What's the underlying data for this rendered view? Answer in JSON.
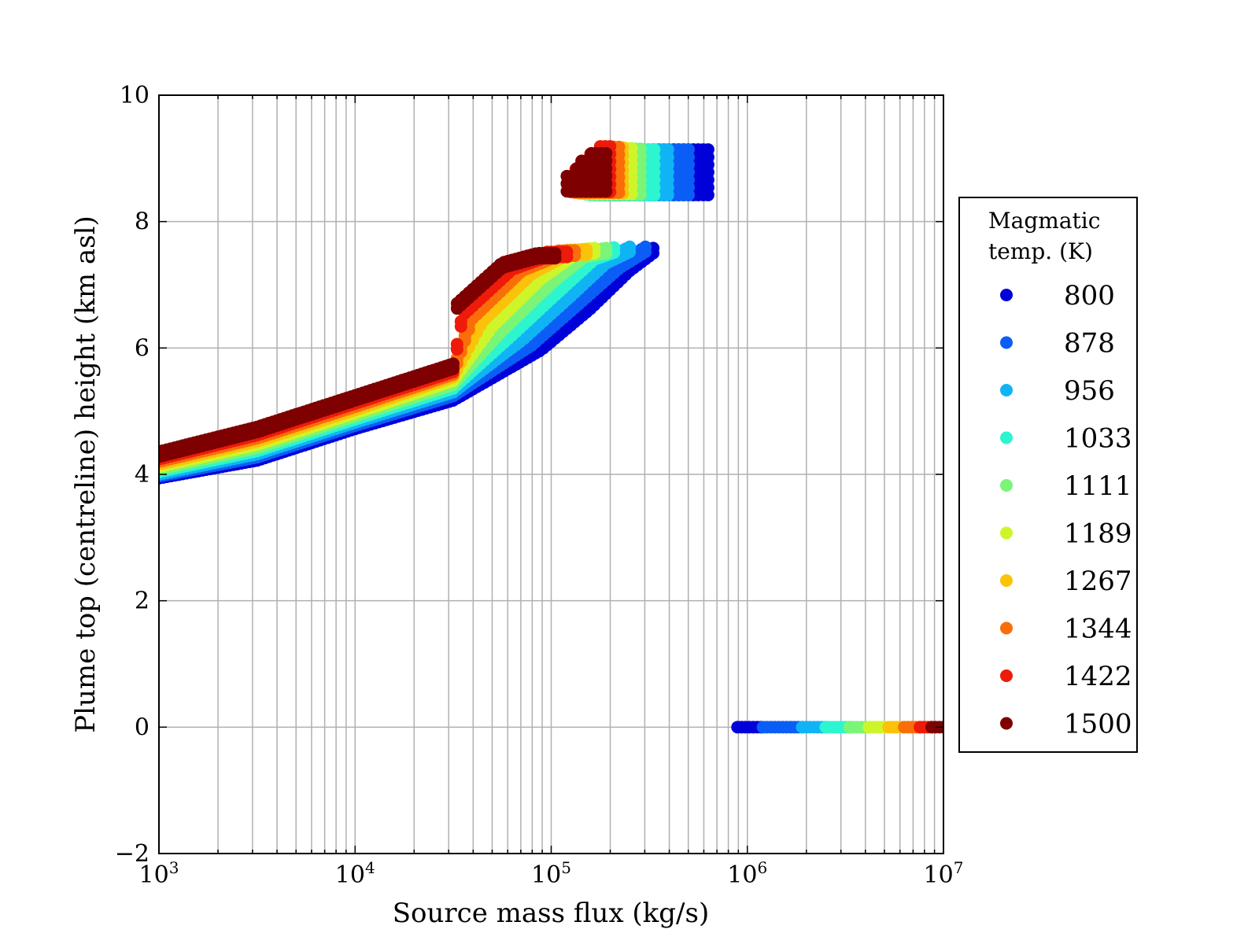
{
  "chart_data": {
    "type": "scatter",
    "title": "",
    "xlabel": "Source mass flux (kg/s)",
    "ylabel": "Plume top (centreline) height (km asl)",
    "x_scale": "log",
    "xlim": [
      1000,
      10000000
    ],
    "ylim": [
      -2,
      10
    ],
    "grid": true,
    "x_ticks": [
      {
        "base": "10",
        "exp": "3"
      },
      {
        "base": "10",
        "exp": "4"
      },
      {
        "base": "10",
        "exp": "5"
      },
      {
        "base": "10",
        "exp": "6"
      },
      {
        "base": "10",
        "exp": "7"
      }
    ],
    "y_ticks": [
      "−2",
      "0",
      "2",
      "4",
      "6",
      "8",
      "10"
    ],
    "y_tick_values": [
      -2,
      0,
      2,
      4,
      6,
      8,
      10
    ],
    "legend": {
      "title_line1": "Magmatic",
      "title_line2": "temp. (K)",
      "placement": "right, outside plot"
    },
    "series": [
      {
        "name": "800",
        "color": "#0000d8",
        "lower_band": {
          "log10_x": [
            3.0,
            3.5,
            4.0,
            4.5,
            4.95,
            5.2,
            5.4,
            5.52
          ],
          "y": [
            4.02,
            4.3,
            4.8,
            5.25,
            6.05,
            6.7,
            7.3,
            7.58
          ],
          "note_thickness": 0.14
        },
        "upper_cluster": {
          "log10_x_start": 5.3,
          "log10_x_end": 5.82,
          "y_bottom": 8.42,
          "y_top": 9.15
        },
        "zero_line": {
          "log10_x_start": 5.95,
          "log10_x_end": 6.08,
          "y": 0
        }
      },
      {
        "name": "878",
        "color": "#0b5ef5",
        "lower_band": {
          "log10_x": [
            3.0,
            3.5,
            4.0,
            4.5,
            4.9,
            5.15,
            5.35,
            5.48
          ],
          "y": [
            4.05,
            4.35,
            4.85,
            5.32,
            6.12,
            6.8,
            7.35,
            7.6
          ]
        },
        "upper_cluster": {
          "log10_x_start": 5.25,
          "log10_x_end": 5.72,
          "y_bottom": 8.42,
          "y_top": 9.18
        },
        "zero_line": {
          "log10_x_start": 6.08,
          "log10_x_end": 6.28,
          "y": 0
        }
      },
      {
        "name": "956",
        "color": "#10b4f5",
        "lower_band": {
          "log10_x": [
            3.0,
            3.5,
            4.0,
            4.5,
            4.85,
            5.1,
            5.28,
            5.4
          ],
          "y": [
            4.08,
            4.4,
            4.9,
            5.38,
            6.2,
            6.9,
            7.42,
            7.6
          ]
        },
        "upper_cluster": {
          "log10_x_start": 5.22,
          "log10_x_end": 5.62,
          "y_bottom": 8.42,
          "y_top": 9.2
        },
        "zero_line": {
          "log10_x_start": 6.28,
          "log10_x_end": 6.4,
          "y": 0
        }
      },
      {
        "name": "1033",
        "color": "#2cf5d0",
        "lower_band": {
          "log10_x": [
            3.0,
            3.5,
            4.0,
            4.5,
            4.8,
            5.05,
            5.22,
            5.33
          ],
          "y": [
            4.12,
            4.45,
            4.95,
            5.44,
            6.28,
            7.0,
            7.48,
            7.6
          ]
        },
        "upper_cluster": {
          "log10_x_start": 5.2,
          "log10_x_end": 5.55,
          "y_bottom": 8.42,
          "y_top": 9.2
        },
        "zero_line": {
          "log10_x_start": 6.4,
          "log10_x_end": 6.52,
          "y": 0
        }
      },
      {
        "name": "1111",
        "color": "#7af577",
        "lower_band": {
          "log10_x": [
            3.0,
            3.5,
            4.0,
            4.5,
            4.75,
            5.0,
            5.17,
            5.28
          ],
          "y": [
            4.16,
            4.5,
            5.0,
            5.5,
            6.35,
            7.1,
            7.52,
            7.58
          ]
        },
        "upper_cluster": {
          "log10_x_start": 5.18,
          "log10_x_end": 5.48,
          "y_bottom": 8.43,
          "y_top": 9.2
        },
        "zero_line": {
          "log10_x_start": 6.52,
          "log10_x_end": 6.62,
          "y": 0
        }
      },
      {
        "name": "1189",
        "color": "#cef52a",
        "lower_band": {
          "log10_x": [
            3.0,
            3.5,
            4.0,
            4.5,
            4.7,
            4.95,
            5.12,
            5.22
          ],
          "y": [
            4.2,
            4.55,
            5.05,
            5.56,
            6.42,
            7.18,
            7.55,
            7.58
          ]
        },
        "upper_cluster": {
          "log10_x_start": 5.16,
          "log10_x_end": 5.43,
          "y_bottom": 8.44,
          "y_top": 9.2
        },
        "zero_line": {
          "log10_x_start": 6.62,
          "log10_x_end": 6.72,
          "y": 0
        }
      },
      {
        "name": "1267",
        "color": "#fbc20a",
        "lower_band": {
          "log10_x": [
            3.0,
            3.5,
            4.0,
            4.5,
            4.65,
            4.9,
            5.08,
            5.18
          ],
          "y": [
            4.24,
            4.6,
            5.1,
            5.62,
            6.5,
            7.25,
            7.55,
            7.56
          ]
        },
        "upper_cluster": {
          "log10_x_start": 5.14,
          "log10_x_end": 5.38,
          "y_bottom": 8.45,
          "y_top": 9.2
        },
        "zero_line": {
          "log10_x_start": 6.72,
          "log10_x_end": 6.8,
          "y": 0
        }
      },
      {
        "name": "1344",
        "color": "#fa6e0a",
        "lower_band": {
          "log10_x": [
            3.0,
            3.5,
            4.0,
            4.5,
            4.6,
            4.85,
            5.04,
            5.12
          ],
          "y": [
            4.28,
            4.65,
            5.15,
            5.66,
            6.55,
            7.3,
            7.54,
            7.54
          ]
        },
        "upper_cluster": {
          "log10_x_start": 5.12,
          "log10_x_end": 5.35,
          "y_bottom": 8.46,
          "y_top": 9.2
        },
        "zero_line": {
          "log10_x_start": 6.8,
          "log10_x_end": 6.88,
          "y": 0
        }
      },
      {
        "name": "1422",
        "color": "#ee1a0a",
        "lower_band": {
          "log10_x": [
            3.0,
            3.5,
            4.0,
            4.5,
            4.55,
            4.8,
            4.98,
            5.08
          ],
          "y": [
            4.32,
            4.7,
            5.2,
            5.7,
            6.6,
            7.32,
            7.52,
            7.52
          ]
        },
        "upper_cluster": {
          "log10_x_start": 5.1,
          "log10_x_end": 5.32,
          "y_bottom": 8.47,
          "y_top": 9.2
        },
        "zero_line": {
          "log10_x_start": 6.88,
          "log10_x_end": 6.94,
          "y": 0
        }
      },
      {
        "name": "1500",
        "color": "#7e0000",
        "lower_band": {
          "log10_x": [
            3.0,
            3.5,
            4.0,
            4.5,
            4.5,
            4.75,
            4.93,
            5.03
          ],
          "y": [
            4.36,
            4.75,
            5.25,
            5.75,
            6.65,
            7.35,
            7.5,
            7.5
          ]
        },
        "upper_cluster": {
          "log10_x_start": 5.08,
          "log10_x_end": 5.3,
          "y_bottom": 8.48,
          "y_top": 9.15
        },
        "zero_line": {
          "log10_x_start": 6.94,
          "log10_x_end": 7.0,
          "y": 0
        }
      }
    ]
  }
}
